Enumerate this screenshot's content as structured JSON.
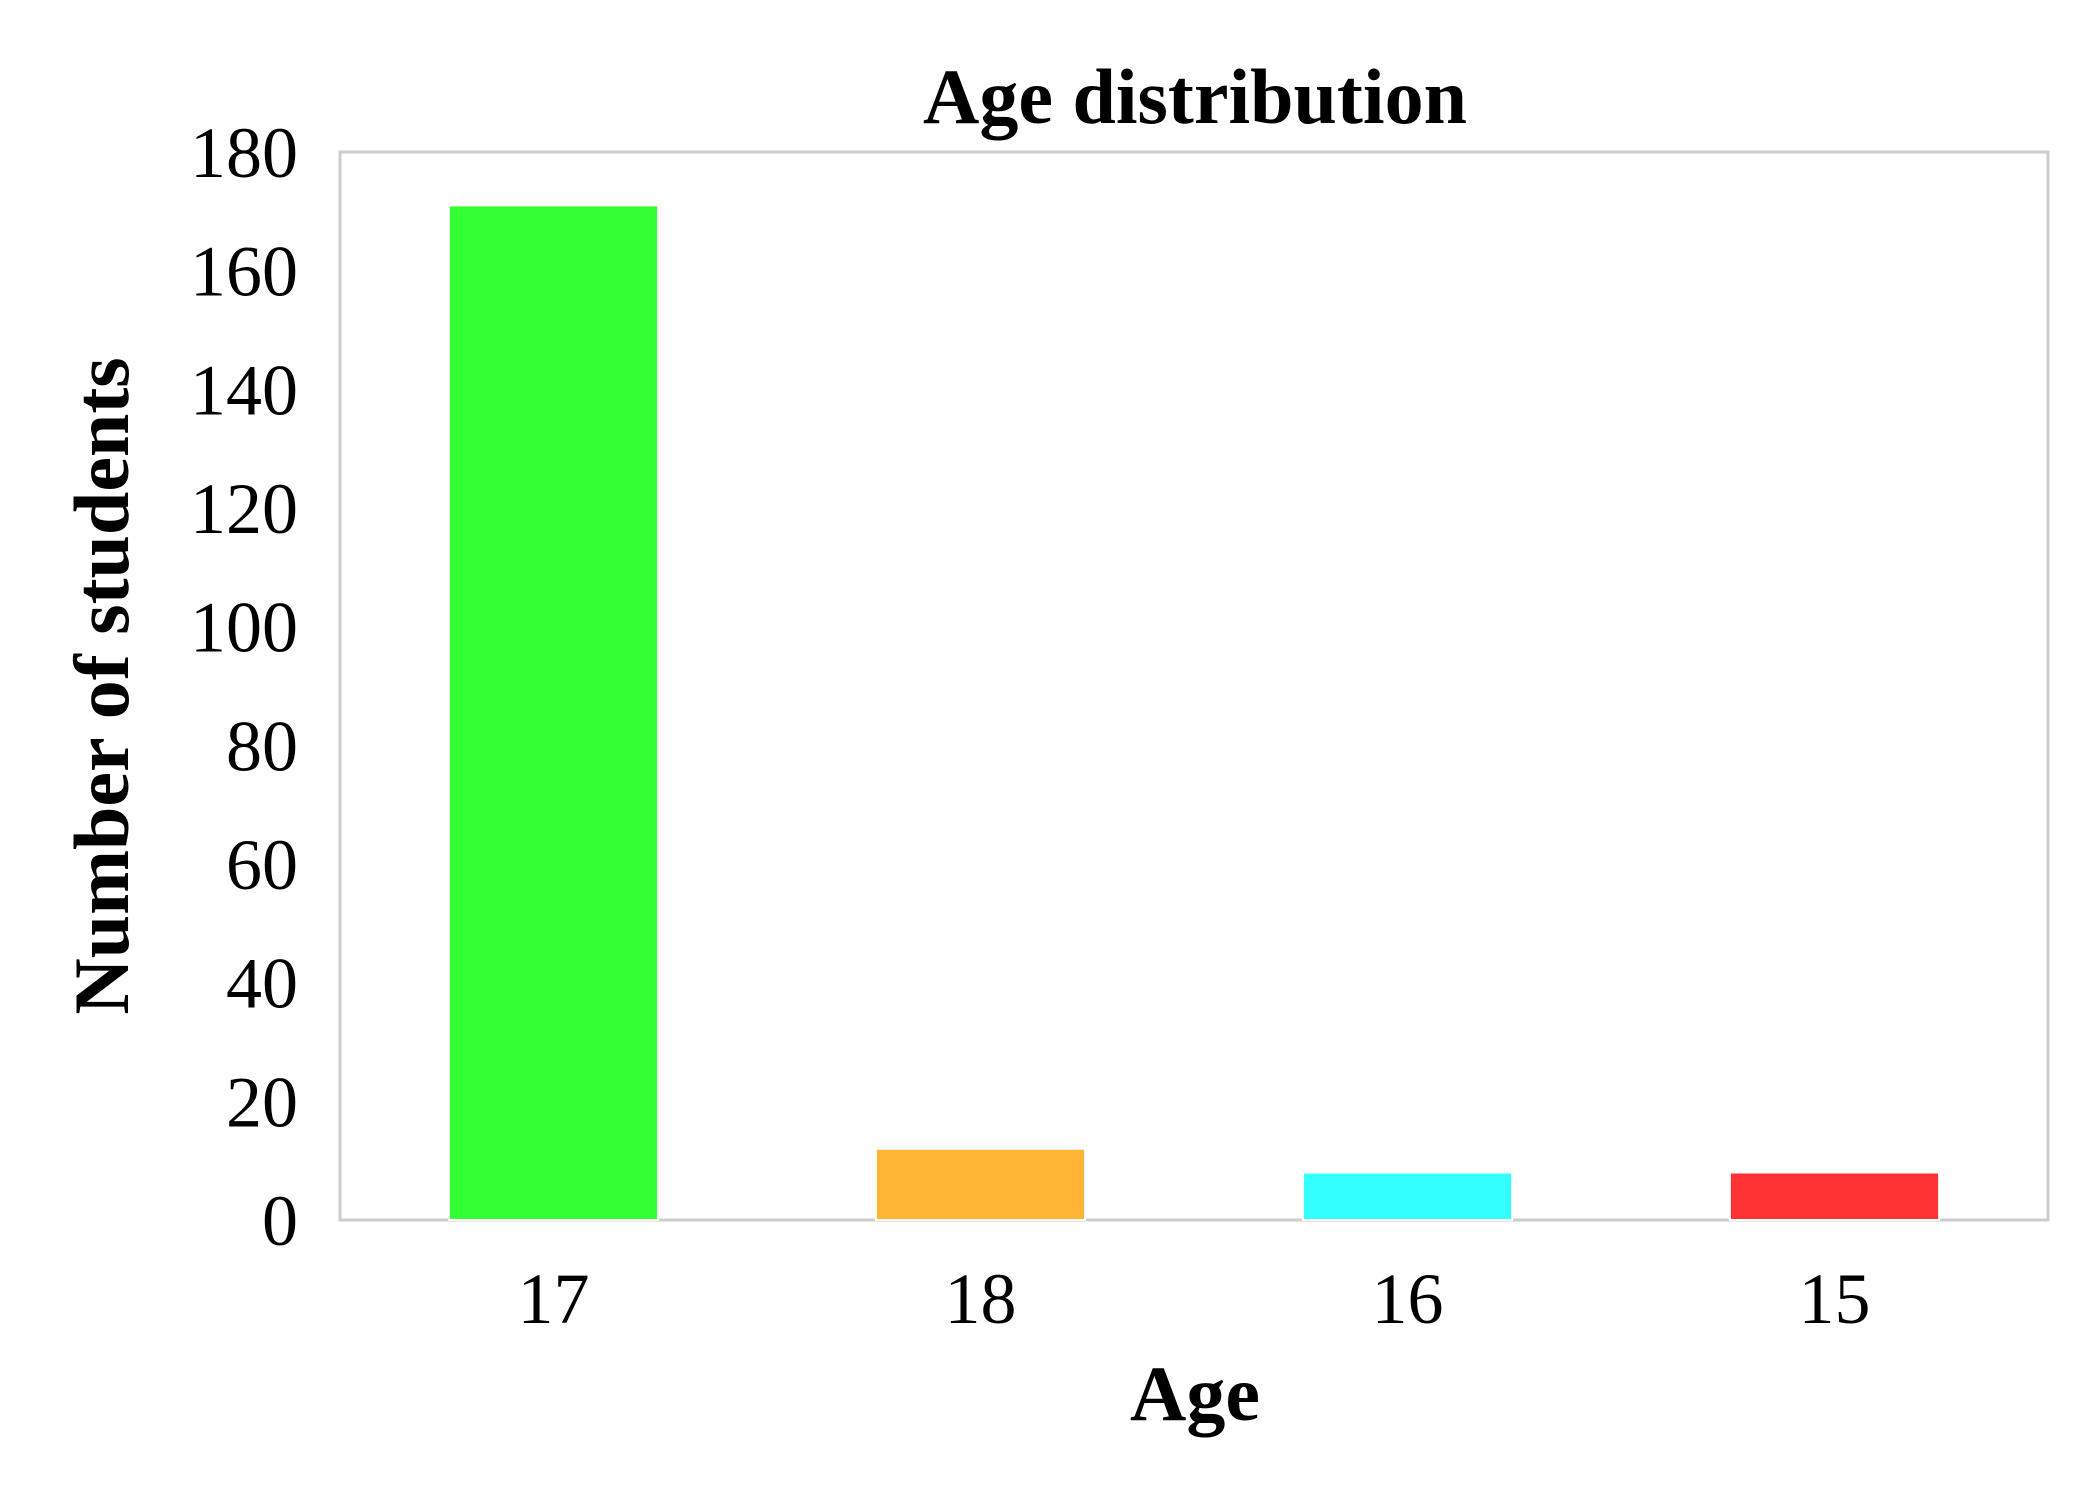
{
  "chart_data": {
    "type": "bar",
    "title": "Age distribution",
    "xlabel": "Age",
    "ylabel": "Number of students",
    "categories": [
      "17",
      "18",
      "16",
      "15"
    ],
    "values": [
      171,
      12,
      8,
      8
    ],
    "colors": [
      "#33ff33",
      "#ffb533",
      "#33ffff",
      "#ff3333"
    ],
    "ylim": [
      0,
      180
    ],
    "yticks": [
      "0",
      "20",
      "40",
      "60",
      "80",
      "100",
      "120",
      "140",
      "160",
      "180"
    ],
    "grid": false,
    "legend": "none"
  }
}
